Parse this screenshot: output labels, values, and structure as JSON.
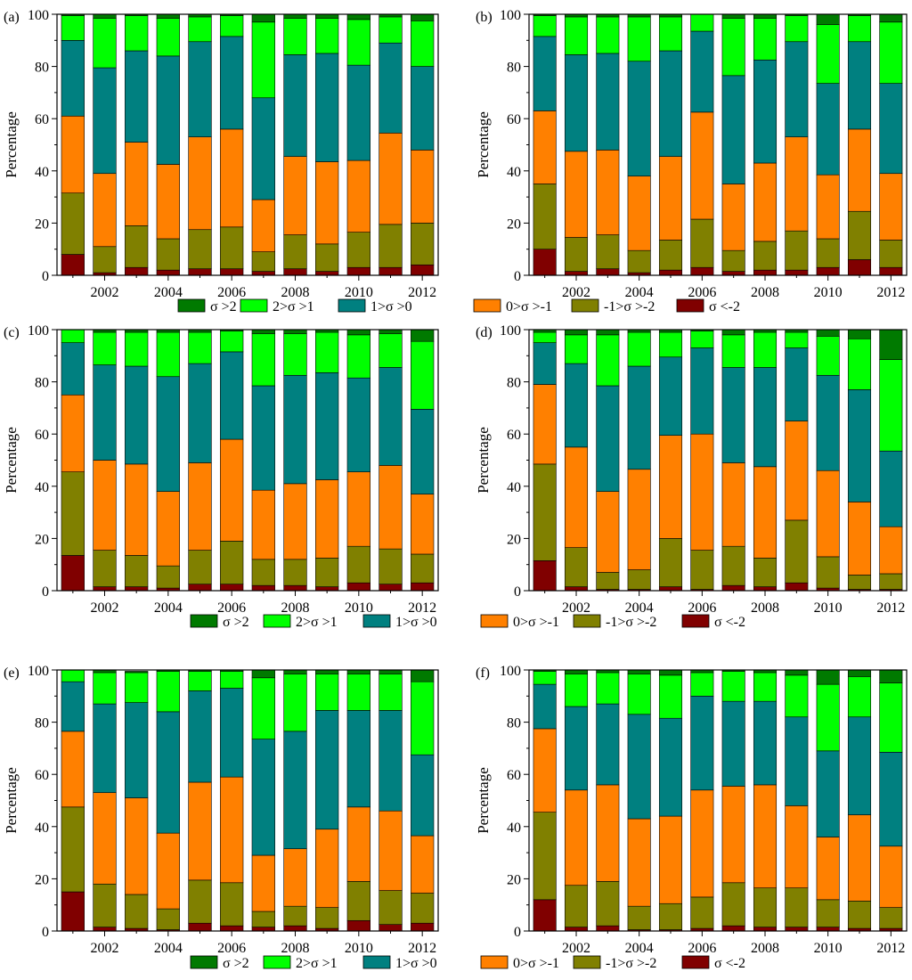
{
  "legend_items": [
    {
      "label": "σ >2",
      "color": "#007a00"
    },
    {
      "label": "2>σ >1",
      "color": "#00ff00"
    },
    {
      "label": "1>σ >0",
      "color": "#008080"
    },
    {
      "label": "0>σ >-1",
      "color": "#ff8000"
    },
    {
      "label": "-1>σ >-2",
      "color": "#808000"
    },
    {
      "label": "σ <-2",
      "color": "#800000"
    }
  ],
  "chart_data": [
    {
      "panel": "(a)",
      "type": "bar",
      "stacked": true,
      "ylabel": "Percentage",
      "ylim": [
        0,
        100
      ],
      "yticks": [
        "0",
        "20",
        "40",
        "60",
        "80",
        "100"
      ],
      "categories": [
        "2001",
        "2002",
        "2003",
        "2004",
        "2005",
        "2006",
        "2007",
        "2008",
        "2009",
        "2010",
        "2011",
        "2012"
      ],
      "xtick_labels": [
        "2002",
        "2004",
        "2006",
        "2008",
        "2010",
        "2012"
      ],
      "series": [
        {
          "name": "σ <-2",
          "values": [
            8,
            1,
            3,
            2,
            2.5,
            2.5,
            1.5,
            2.5,
            1.5,
            3,
            3,
            4
          ]
        },
        {
          "name": "-1>σ >-2",
          "values": [
            23.5,
            10,
            16,
            12,
            15,
            16,
            7.5,
            13,
            10.5,
            13.5,
            16.5,
            16
          ]
        },
        {
          "name": "0>σ >-1",
          "values": [
            29.5,
            28,
            32,
            28.5,
            35.5,
            37.5,
            20,
            30,
            31.5,
            27.5,
            35,
            28
          ]
        },
        {
          "name": "1>σ >0",
          "values": [
            29,
            40.5,
            35,
            41.5,
            36.5,
            35.5,
            39,
            39,
            41.5,
            36.5,
            34.5,
            32
          ]
        },
        {
          "name": "2>σ >1",
          "values": [
            9.5,
            19,
            13.5,
            14.5,
            9.5,
            8,
            29,
            14,
            13.5,
            17.5,
            10,
            17.5
          ]
        },
        {
          "name": "σ >2",
          "values": [
            0.5,
            1.5,
            0.5,
            1.5,
            1,
            0.5,
            3,
            1.5,
            1.5,
            2,
            1,
            2.5
          ]
        }
      ]
    },
    {
      "panel": "(b)",
      "type": "bar",
      "stacked": true,
      "ylabel": "Percentage",
      "ylim": [
        0,
        100
      ],
      "yticks": [
        "0",
        "20",
        "40",
        "60",
        "80",
        "100"
      ],
      "categories": [
        "2001",
        "2002",
        "2003",
        "2004",
        "2005",
        "2006",
        "2007",
        "2008",
        "2009",
        "2010",
        "2011",
        "2012"
      ],
      "xtick_labels": [
        "2002",
        "2004",
        "2006",
        "2008",
        "2010",
        "2012"
      ],
      "series": [
        {
          "name": "σ <-2",
          "values": [
            10,
            1.5,
            2.5,
            1,
            2,
            3,
            1.5,
            2,
            2,
            3,
            6,
            3
          ]
        },
        {
          "name": "-1>σ >-2",
          "values": [
            25,
            13,
            13,
            8.5,
            11.5,
            18.5,
            8,
            11,
            15,
            11,
            18.5,
            10.5
          ]
        },
        {
          "name": "0>σ >-1",
          "values": [
            28,
            33,
            32.5,
            28.5,
            32,
            41,
            25.5,
            30,
            36,
            24.5,
            31.5,
            25.5
          ]
        },
        {
          "name": "1>σ >0",
          "values": [
            28.5,
            37,
            37,
            44,
            40.5,
            31,
            41.5,
            39.5,
            36.5,
            35,
            33.5,
            34.5
          ]
        },
        {
          "name": "2>σ >1",
          "values": [
            8,
            14.5,
            14,
            17,
            13,
            6.5,
            22,
            16,
            10,
            22.5,
            10,
            23.5
          ]
        },
        {
          "name": "σ >2",
          "values": [
            0.5,
            1,
            1,
            1,
            1,
            0,
            1.5,
            1.5,
            0.5,
            4,
            0.5,
            3
          ]
        }
      ]
    },
    {
      "panel": "(c)",
      "type": "bar",
      "stacked": true,
      "ylabel": "Percentage",
      "ylim": [
        0,
        100
      ],
      "yticks": [
        "0",
        "20",
        "40",
        "60",
        "80",
        "100"
      ],
      "categories": [
        "2001",
        "2002",
        "2003",
        "2004",
        "2005",
        "2006",
        "2007",
        "2008",
        "2009",
        "2010",
        "2011",
        "2012"
      ],
      "xtick_labels": [
        "2002",
        "2004",
        "2006",
        "2008",
        "2010",
        "2012"
      ],
      "series": [
        {
          "name": "σ <-2",
          "values": [
            13.5,
            1.5,
            1.5,
            1,
            2.5,
            2.5,
            2,
            2,
            1.5,
            3,
            2.5,
            3
          ]
        },
        {
          "name": "-1>σ >-2",
          "values": [
            32,
            14,
            12,
            8.5,
            13,
            16.5,
            10,
            10,
            11,
            14,
            13.5,
            11
          ]
        },
        {
          "name": "0>σ >-1",
          "values": [
            29.5,
            34.5,
            35,
            28.5,
            33.5,
            39,
            26.5,
            29,
            30,
            28.5,
            32,
            23
          ]
        },
        {
          "name": "1>σ >0",
          "values": [
            20,
            36.5,
            37.5,
            44,
            38,
            33.5,
            40,
            41.5,
            41,
            36,
            37.5,
            32.5
          ]
        },
        {
          "name": "2>σ >1",
          "values": [
            5,
            12.5,
            13,
            17,
            12,
            8,
            20,
            16,
            15.5,
            16.5,
            13,
            26
          ]
        },
        {
          "name": "σ >2",
          "values": [
            0,
            1,
            1,
            1,
            1,
            0.5,
            1.5,
            1.5,
            1,
            2,
            1.5,
            4.5
          ]
        }
      ]
    },
    {
      "panel": "(d)",
      "type": "bar",
      "stacked": true,
      "ylabel": "Percentage",
      "ylim": [
        0,
        100
      ],
      "yticks": [
        "0",
        "20",
        "40",
        "60",
        "80",
        "100"
      ],
      "categories": [
        "2001",
        "2002",
        "2003",
        "2004",
        "2005",
        "2006",
        "2007",
        "2008",
        "2009",
        "2010",
        "2011",
        "2012"
      ],
      "xtick_labels": [
        "2002",
        "2004",
        "2006",
        "2008",
        "2010",
        "2012"
      ],
      "series": [
        {
          "name": "σ <-2",
          "values": [
            11.5,
            1.5,
            0.5,
            0.5,
            1.5,
            0.5,
            2,
            1.5,
            3,
            1,
            0.5,
            0.5
          ]
        },
        {
          "name": "-1>σ >-2",
          "values": [
            37,
            15,
            6.5,
            7.5,
            18.5,
            15,
            15,
            11,
            24,
            12,
            5.5,
            6
          ]
        },
        {
          "name": "0>σ >-1",
          "values": [
            30.5,
            38.5,
            31,
            38.5,
            39.5,
            44.5,
            32,
            35,
            38,
            33,
            28,
            18
          ]
        },
        {
          "name": "1>σ >0",
          "values": [
            16,
            32,
            40.5,
            39.5,
            30,
            33,
            36.5,
            38,
            28,
            36.5,
            43,
            29
          ]
        },
        {
          "name": "2>σ >1",
          "values": [
            4,
            11,
            19.5,
            13,
            9.5,
            6.5,
            12.5,
            13.5,
            6,
            15,
            19.5,
            35
          ]
        },
        {
          "name": "σ >2",
          "values": [
            1,
            2,
            2,
            1,
            1,
            0.5,
            2,
            1,
            1,
            2.5,
            3.5,
            11.5
          ]
        }
      ]
    },
    {
      "panel": "(e)",
      "type": "bar",
      "stacked": true,
      "ylabel": "Percentage",
      "ylim": [
        0,
        100
      ],
      "yticks": [
        "0",
        "20",
        "40",
        "60",
        "80",
        "100"
      ],
      "categories": [
        "2001",
        "2002",
        "2003",
        "2004",
        "2005",
        "2006",
        "2007",
        "2008",
        "2009",
        "2010",
        "2011",
        "2012"
      ],
      "xtick_labels": [
        "2002",
        "2004",
        "2006",
        "2008",
        "2010",
        "2012"
      ],
      "series": [
        {
          "name": "σ <-2",
          "values": [
            15,
            1.5,
            1,
            0.5,
            3,
            2,
            1.5,
            2,
            1,
            4,
            2.5,
            3
          ]
        },
        {
          "name": "-1>σ >-2",
          "values": [
            32.5,
            16.5,
            13,
            8,
            16.5,
            16.5,
            6,
            7.5,
            8,
            15,
            13,
            11.5
          ]
        },
        {
          "name": "0>σ >-1",
          "values": [
            29,
            35,
            37,
            29,
            37.5,
            40.5,
            21.5,
            22,
            30,
            28.5,
            30.5,
            22
          ]
        },
        {
          "name": "1>σ >0",
          "values": [
            19,
            34,
            36.5,
            46.5,
            35,
            34,
            44.5,
            45,
            45.5,
            37,
            38.5,
            31
          ]
        },
        {
          "name": "2>σ >1",
          "values": [
            4.5,
            12,
            11.5,
            15.5,
            7.5,
            6.5,
            23.5,
            22,
            14,
            14,
            14,
            28
          ]
        },
        {
          "name": "σ >2",
          "values": [
            0,
            1,
            0.5,
            0.5,
            0.5,
            0.5,
            3,
            1.5,
            1.5,
            1.5,
            1.5,
            4.5
          ]
        }
      ]
    },
    {
      "panel": "(f)",
      "type": "bar",
      "stacked": true,
      "ylabel": "Percentage",
      "ylim": [
        0,
        100
      ],
      "yticks": [
        "0",
        "20",
        "40",
        "60",
        "80",
        "100"
      ],
      "categories": [
        "2001",
        "2002",
        "2003",
        "2004",
        "2005",
        "2006",
        "2007",
        "2008",
        "2009",
        "2010",
        "2011",
        "2012"
      ],
      "xtick_labels": [
        "2002",
        "2004",
        "2006",
        "2008",
        "2010",
        "2012"
      ],
      "series": [
        {
          "name": "σ <-2",
          "values": [
            12,
            1.5,
            2,
            0.5,
            0.5,
            1,
            2,
            1.5,
            1.5,
            1.5,
            1,
            1
          ]
        },
        {
          "name": "-1>σ >-2",
          "values": [
            33.5,
            16,
            17,
            9,
            10,
            12,
            16.5,
            15,
            15,
            10.5,
            10.5,
            8
          ]
        },
        {
          "name": "0>σ >-1",
          "values": [
            32,
            36.5,
            37,
            33.5,
            33.5,
            41,
            37,
            39.5,
            31.5,
            24,
            33,
            23.5
          ]
        },
        {
          "name": "1>σ >0",
          "values": [
            17,
            32,
            31,
            40,
            37.5,
            36,
            32.5,
            32,
            34,
            33,
            37.5,
            36
          ]
        },
        {
          "name": "2>σ >1",
          "values": [
            5,
            12.5,
            12,
            15.5,
            16.5,
            9,
            11.5,
            11,
            16,
            25.5,
            15.5,
            26.5
          ]
        },
        {
          "name": "σ >2",
          "values": [
            0.5,
            1.5,
            1,
            1.5,
            2,
            1,
            0.5,
            1,
            2,
            5.5,
            2.5,
            5
          ]
        }
      ]
    }
  ]
}
